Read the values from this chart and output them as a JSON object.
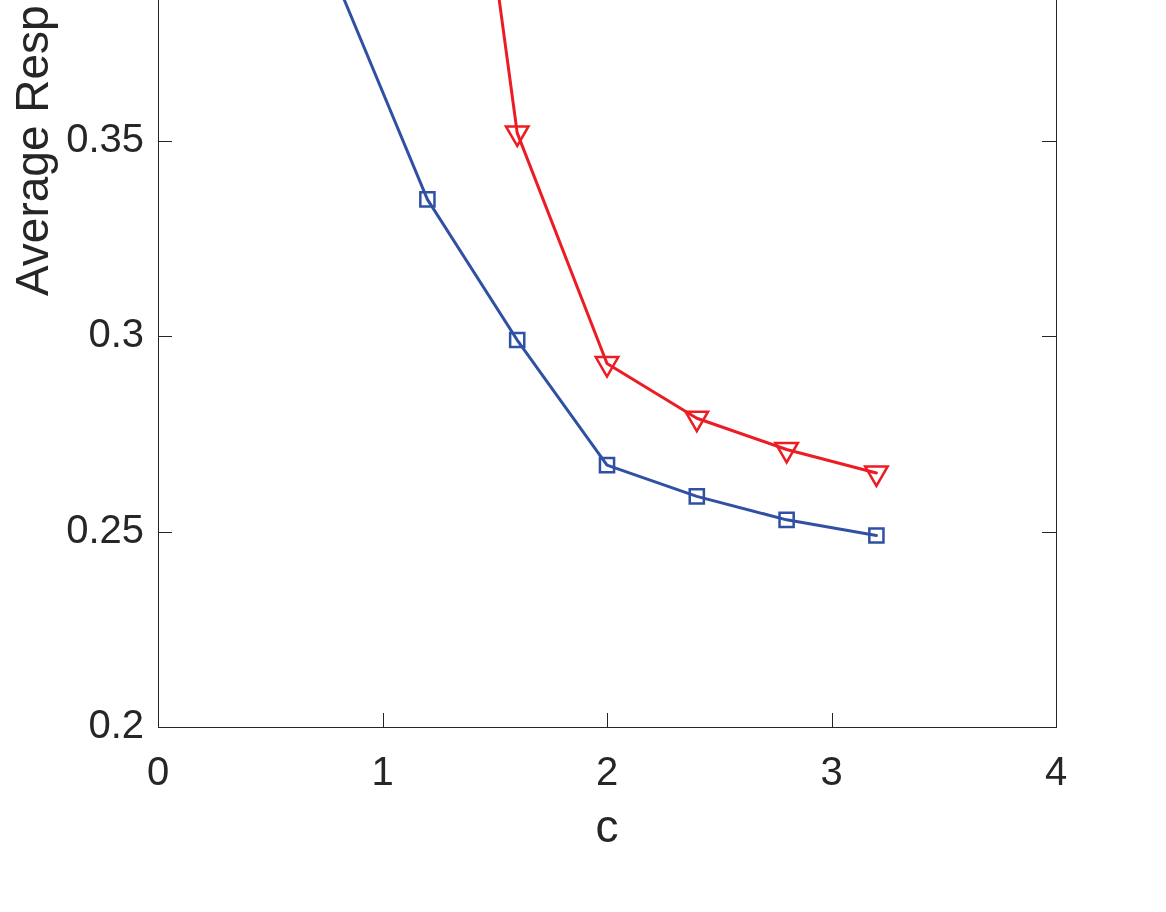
{
  "chart_data": {
    "type": "line",
    "xlabel": "c",
    "ylabel": "Average Resp",
    "xlim": [
      0,
      4
    ],
    "xticks": [
      0,
      1,
      2,
      3,
      4
    ],
    "ylim": [
      0.2,
      0.386
    ],
    "yticks": [
      0.2,
      0.25,
      0.3,
      0.35
    ],
    "series": [
      {
        "color": "#3050a3",
        "marker": "square",
        "x": [
          0.83,
          1.2,
          1.6,
          2.0,
          2.4,
          2.8,
          3.2
        ],
        "values": [
          0.386,
          0.335,
          0.299,
          0.267,
          0.259,
          0.253,
          0.249
        ]
      },
      {
        "color": "#ec1c24",
        "marker": "triangle",
        "x": [
          1.52,
          1.6,
          2.0,
          2.4,
          2.8,
          3.2
        ],
        "values": [
          0.386,
          0.352,
          0.293,
          0.279,
          0.271,
          0.265
        ]
      }
    ]
  }
}
